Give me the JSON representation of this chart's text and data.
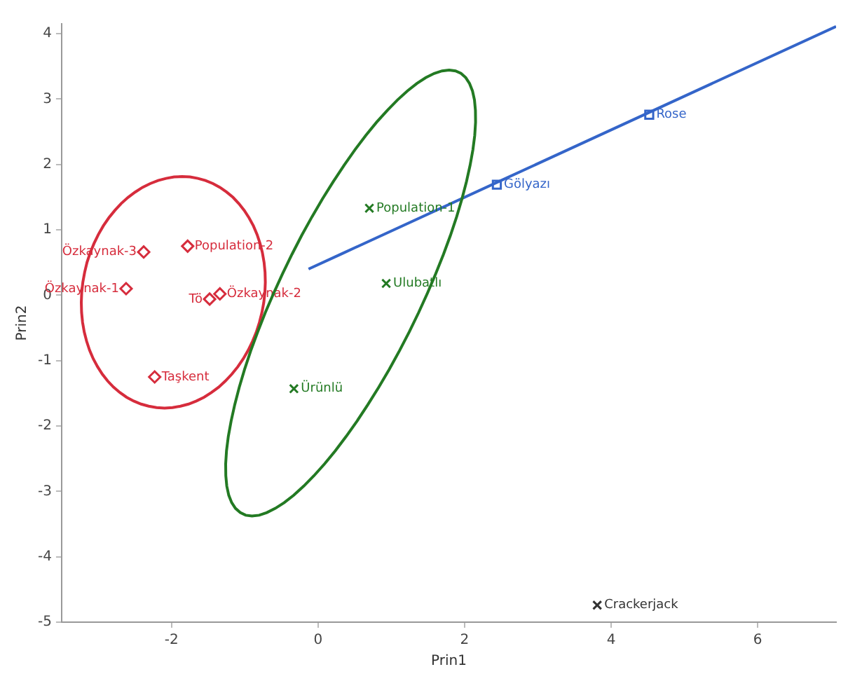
{
  "chart_data": {
    "type": "scatter",
    "xlabel": "Prin1",
    "ylabel": "Prin2",
    "xlim": [
      -3.5,
      7.07
    ],
    "ylim": [
      -5,
      4.15
    ],
    "xticks": [
      -2,
      0,
      2,
      4,
      6
    ],
    "yticks": [
      -5,
      -4,
      -3,
      -2,
      -1,
      0,
      1,
      2,
      3,
      4
    ],
    "grid": false,
    "legend": false,
    "series": [
      {
        "type": "line",
        "color": "#3465c9",
        "marker": "none",
        "x": [
          -0.13,
          7.07
        ],
        "values": [
          0.4,
          4.11
        ]
      },
      {
        "type": "scatter",
        "color": "#d62c3c",
        "marker": "diamond",
        "x": [
          -2.38,
          -1.78,
          -2.62,
          -1.48,
          -1.34,
          -2.23
        ],
        "values": [
          0.66,
          0.75,
          0.1,
          -0.06,
          0.02,
          -1.25
        ],
        "value_labels": [
          "Özkaynak-3",
          "Population-2",
          "Özkaynak-1",
          "Tö",
          "Özkaynak-2",
          "Taşkent"
        ]
      },
      {
        "type": "scatter",
        "color": "#237a23",
        "marker": "cross",
        "x": [
          0.7,
          0.93,
          -0.33
        ],
        "values": [
          1.33,
          0.18,
          -1.43
        ],
        "value_labels": [
          "Population-1",
          "Ulubatlı",
          "Ürünlü"
        ]
      },
      {
        "type": "scatter",
        "color": "#3465c9",
        "marker": "square",
        "x": [
          2.44,
          4.52
        ],
        "values": [
          1.69,
          2.76
        ],
        "value_labels": [
          "Gölyazı",
          "Rose"
        ]
      },
      {
        "type": "scatter",
        "color": "#333333",
        "marker": "cross",
        "x": [
          3.81
        ],
        "values": [
          -4.74
        ],
        "value_labels": [
          "Crackerjack"
        ]
      }
    ]
  }
}
